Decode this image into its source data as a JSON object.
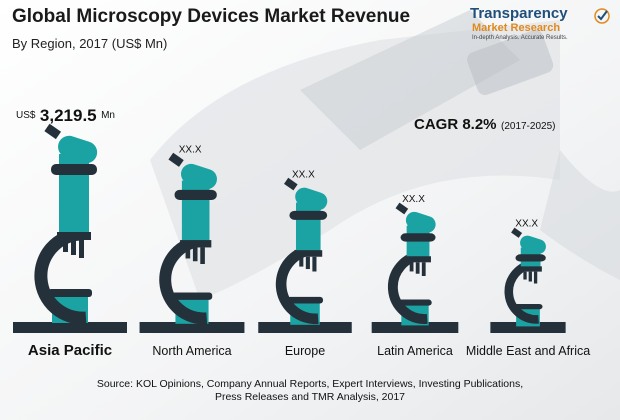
{
  "header": {
    "title": "Global Microscopy Devices Market Revenue",
    "subtitle": "By Region, 2017 (US$ Mn)"
  },
  "logo": {
    "name": "Transparency",
    "name2": "Market Research",
    "tagline": "In-depth Analysis. Accurate Results."
  },
  "highlight": {
    "currency": "US$",
    "value": "3,219.5",
    "unit": "Mn"
  },
  "cagr": {
    "label": "CAGR 8.2%",
    "period": "(2017-2025)"
  },
  "chart_data": {
    "type": "bar",
    "title": "Global Microscopy Devices Market Revenue",
    "subtitle": "By Region, 2017 (US$ Mn)",
    "categories": [
      "Asia Pacific",
      "North America",
      "Europe",
      "Latin America",
      "Middle East and Africa"
    ],
    "values": [
      3219.5,
      null,
      null,
      null,
      null
    ],
    "value_labels": [
      "",
      "XX.X",
      "XX.X",
      "XX.X",
      "XX.X"
    ],
    "relative_heights": [
      1.0,
      0.86,
      0.74,
      0.62,
      0.5
    ],
    "ylim": [
      0,
      3219.5
    ]
  },
  "colors": {
    "teal": "#1ba3a3",
    "dark": "#25313a",
    "accent": "#e08a1e",
    "brand": "#1f4f7a"
  },
  "source": {
    "line1": "Source: KOL Opinions, Company Annual Reports, Expert Interviews, Investing Publications,",
    "line2": "Press Releases and TMR Analysis, 2017"
  }
}
